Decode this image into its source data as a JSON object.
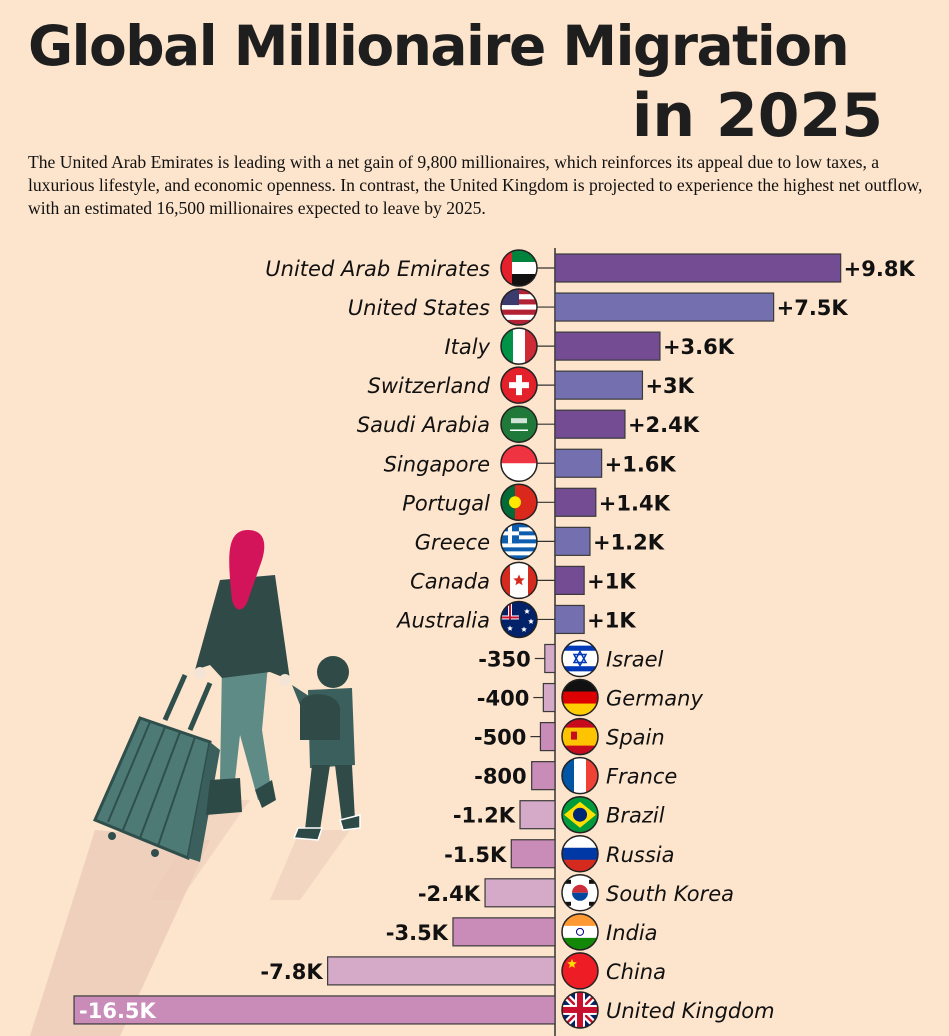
{
  "title": {
    "line1": "Global Millionaire Migration",
    "line2": "in 2025"
  },
  "description": "The United Arab Emirates is leading with a net gain of 9,800 millionaires, which reinforces its appeal due to low taxes, a luxurious lifestyle, and economic openness. In contrast, the United Kingdom is projected to experience the highest net outflow, with an estimated 16,500 millionaires expected to leave by 2025.",
  "colors": {
    "background": "#fde4cc",
    "positive_dark": "#734c94",
    "positive_light": "#7470b0",
    "negative_dark": "#c98bb8",
    "negative_light": "#d4aac8"
  },
  "chart_data": {
    "type": "bar",
    "orientation": "horizontal",
    "unit": "net millionaires",
    "categories": [
      "United Arab Emirates",
      "United States",
      "Italy",
      "Switzerland",
      "Saudi Arabia",
      "Singapore",
      "Portugal",
      "Greece",
      "Canada",
      "Australia",
      "Israel",
      "Germany",
      "Spain",
      "France",
      "Brazil",
      "Russia",
      "South Korea",
      "India",
      "China",
      "United Kingdom"
    ],
    "values": [
      9800,
      7500,
      3600,
      3000,
      2400,
      1600,
      1400,
      1200,
      1000,
      1000,
      -350,
      -400,
      -500,
      -800,
      -1200,
      -1500,
      -2400,
      -3500,
      -7800,
      -16500
    ],
    "data_labels": [
      "+9.8K",
      "+7.5K",
      "+3.6K",
      "+3K",
      "+2.4K",
      "+1.6K",
      "+1.4K",
      "+1.2K",
      "+1K",
      "+1K",
      "-350",
      "-400",
      "-500",
      "-800",
      "-1.2K",
      "-1.5K",
      "-2.4K",
      "-3.5K",
      "-7.8K",
      "-16.5K"
    ],
    "flag_icons": [
      "uae-flag-icon",
      "usa-flag-icon",
      "italy-flag-icon",
      "switzerland-flag-icon",
      "saudi-arabia-flag-icon",
      "singapore-flag-icon",
      "portugal-flag-icon",
      "greece-flag-icon",
      "canada-flag-icon",
      "australia-flag-icon",
      "israel-flag-icon",
      "germany-flag-icon",
      "spain-flag-icon",
      "france-flag-icon",
      "brazil-flag-icon",
      "russia-flag-icon",
      "south-korea-flag-icon",
      "india-flag-icon",
      "china-flag-icon",
      "uk-flag-icon"
    ],
    "xlim": [
      -16500,
      9800
    ],
    "grid": false,
    "legend": "none"
  }
}
